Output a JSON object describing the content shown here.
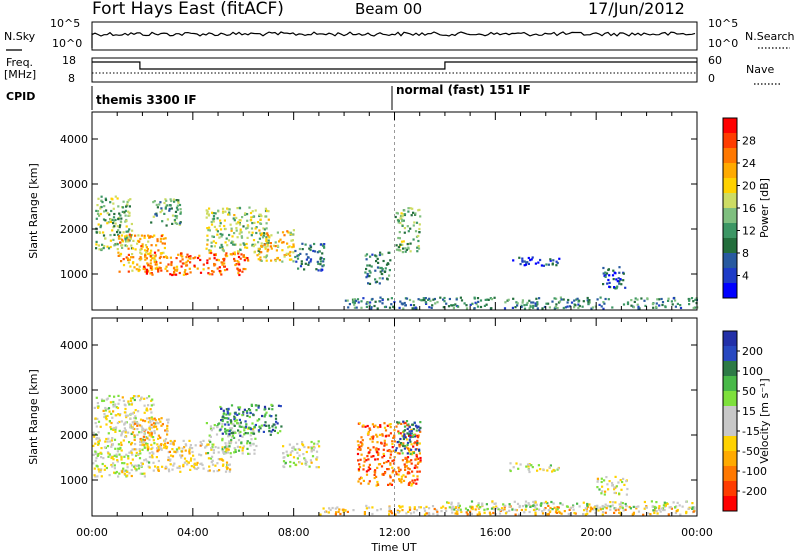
{
  "header": {
    "station": "Fort Hays East (fitACF)",
    "beam": "Beam 00",
    "date": "17/Jun/2012"
  },
  "noise_panel": {
    "left_label": "N.Sky",
    "left_ticks": [
      "10^5",
      "10^0"
    ],
    "right_label": "N.Search",
    "right_ticks": [
      "10^5",
      "10^0"
    ]
  },
  "freq_panel": {
    "left_label_line1": "Freq.",
    "left_label_line2": "[MHz]",
    "left_ticks": [
      "18",
      "8"
    ],
    "right_label": "Nave",
    "right_ticks": [
      "60",
      "0"
    ]
  },
  "cpid_panel": {
    "label": "CPID",
    "modes": [
      {
        "name": "themis 3300 IF",
        "start_hour": 0
      },
      {
        "name": "normal (fast) 151 IF",
        "start_hour": 12
      }
    ]
  },
  "axes": {
    "ylabel": "Slant Range [km]",
    "yticks": [
      "4000",
      "3000",
      "2000",
      "1000"
    ],
    "xlabel": "Time UT",
    "xticks": [
      "00:00",
      "04:00",
      "08:00",
      "12:00",
      "16:00",
      "20:00",
      "00:00"
    ]
  },
  "power_scale": {
    "label": "Power [dB]",
    "ticks": [
      "28",
      "24",
      "20",
      "16",
      "12",
      "8",
      "4"
    ],
    "colors": [
      "#ff0000",
      "#ff3c00",
      "#ff7800",
      "#ffaa00",
      "#ffd200",
      "#cddc64",
      "#7fbf7f",
      "#3c9664",
      "#236e3c",
      "#285aa0",
      "#1e3cc8",
      "#0000ff"
    ]
  },
  "velocity_scale": {
    "label": "Velocity [m s⁻¹]",
    "ticks": [
      "200",
      "100",
      "50",
      "15",
      "-15",
      "-50",
      "-100",
      "-200"
    ],
    "colors": [
      "#2330a8",
      "#2848c0",
      "#2d7a46",
      "#48b848",
      "#7ee03c",
      "#c8c8c8",
      "#c8c8c8",
      "#ffd200",
      "#ffaa00",
      "#ff7800",
      "#ff3c00",
      "#ff0000"
    ]
  },
  "chart_data": [
    {
      "type": "heatmap",
      "name": "Power",
      "x_unit": "hours UT",
      "xlim": [
        0,
        24
      ],
      "ylim": [
        200,
        4600
      ],
      "blobs": [
        {
          "x0": 0.1,
          "x1": 1.6,
          "y0": 1550,
          "y1": 2750,
          "value": 14
        },
        {
          "x0": 1.0,
          "x1": 3.0,
          "y0": 1050,
          "y1": 1900,
          "value": 22
        },
        {
          "x0": 2.0,
          "x1": 6.2,
          "y0": 1000,
          "y1": 1500,
          "value": 26
        },
        {
          "x0": 4.5,
          "x1": 7.0,
          "y0": 1500,
          "y1": 2500,
          "value": 16
        },
        {
          "x0": 6.5,
          "x1": 8.0,
          "y0": 1300,
          "y1": 2000,
          "value": 20
        },
        {
          "x0": 2.3,
          "x1": 3.5,
          "y0": 2100,
          "y1": 2700,
          "value": 12
        },
        {
          "x0": 8.0,
          "x1": 9.2,
          "y0": 1100,
          "y1": 1700,
          "value": 8
        },
        {
          "x0": 10.8,
          "x1": 11.8,
          "y0": 800,
          "y1": 1500,
          "value": 10
        },
        {
          "x0": 12.0,
          "x1": 13.0,
          "y0": 1500,
          "y1": 2500,
          "value": 14
        },
        {
          "x0": 16.5,
          "x1": 18.5,
          "y0": 1200,
          "y1": 1400,
          "value": 6
        },
        {
          "x0": 20.2,
          "x1": 21.2,
          "y0": 700,
          "y1": 1200,
          "value": 6
        },
        {
          "x0": 10.0,
          "x1": 24.0,
          "y0": 250,
          "y1": 500,
          "value": 10
        }
      ]
    },
    {
      "type": "heatmap",
      "name": "Velocity",
      "x_unit": "hours UT",
      "xlim": [
        0,
        24
      ],
      "ylim": [
        200,
        4600
      ],
      "blobs": [
        {
          "x0": 0.0,
          "x1": 2.5,
          "y0": 1100,
          "y1": 2900,
          "value": 0
        },
        {
          "x0": 1.5,
          "x1": 3.0,
          "y0": 1700,
          "y1": 2400,
          "value": -60
        },
        {
          "x0": 2.5,
          "x1": 5.5,
          "y0": 1200,
          "y1": 1900,
          "value": -40
        },
        {
          "x0": 4.5,
          "x1": 6.5,
          "y0": 1600,
          "y1": 2300,
          "value": 30
        },
        {
          "x0": 5.0,
          "x1": 7.5,
          "y0": 2000,
          "y1": 2700,
          "value": 150
        },
        {
          "x0": 7.5,
          "x1": 9.0,
          "y0": 1300,
          "y1": 1900,
          "value": 0
        },
        {
          "x0": 10.5,
          "x1": 13.0,
          "y0": 900,
          "y1": 2300,
          "value": -150
        },
        {
          "x0": 12.0,
          "x1": 13.0,
          "y0": 1600,
          "y1": 2400,
          "value": 150
        },
        {
          "x0": 16.5,
          "x1": 18.5,
          "y0": 1200,
          "y1": 1400,
          "value": 0
        },
        {
          "x0": 20.0,
          "x1": 21.2,
          "y0": 700,
          "y1": 1100,
          "value": 0
        },
        {
          "x0": 9.0,
          "x1": 24.0,
          "y0": 250,
          "y1": 450,
          "value": -60
        },
        {
          "x0": 14.0,
          "x1": 24.0,
          "y0": 350,
          "y1": 550,
          "value": 30
        }
      ]
    }
  ]
}
